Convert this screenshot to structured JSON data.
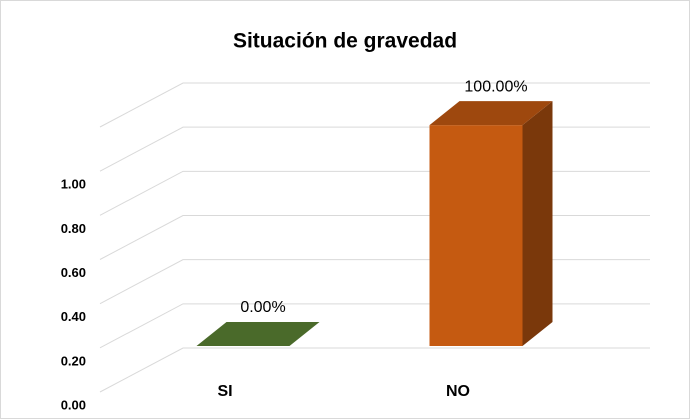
{
  "chart_data": {
    "type": "bar3d",
    "title": "Situación de gravedad",
    "categories": [
      "SI",
      "NO"
    ],
    "values": [
      0,
      1
    ],
    "value_labels": [
      "0.00%",
      "100.00%"
    ],
    "colors": [
      "#4a6a2a",
      "#c55a11"
    ],
    "ylim": [
      0,
      1.2
    ],
    "yticks": [
      {
        "value": 0,
        "label": "0.00"
      },
      {
        "value": 0.2,
        "label": "0.20"
      },
      {
        "value": 0.4,
        "label": "0.40"
      },
      {
        "value": 0.6,
        "label": "0.60"
      },
      {
        "value": 0.8,
        "label": "0.80"
      },
      {
        "value": 1,
        "label": "1.00"
      }
    ],
    "grid": true
  }
}
